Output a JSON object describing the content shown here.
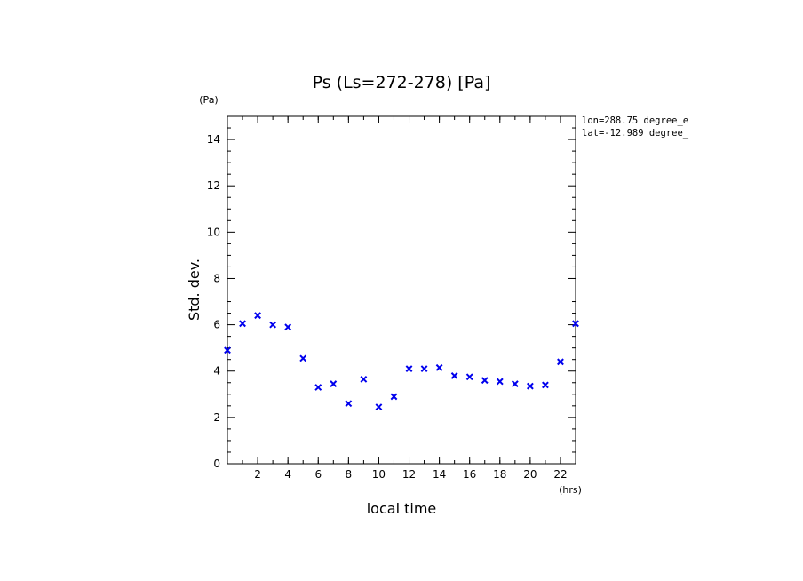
{
  "chart_data": {
    "type": "scatter",
    "title": "Ps (Ls=272-278) [Pa]",
    "xlabel": "local time",
    "ylabel": "Std. dev.",
    "x_unit": "(hrs)",
    "y_unit": "(Pa)",
    "xlim": [
      0,
      23
    ],
    "ylim": [
      0,
      15
    ],
    "x_ticks": [
      2,
      4,
      6,
      8,
      10,
      12,
      14,
      16,
      18,
      20,
      22
    ],
    "y_ticks": [
      0,
      2,
      4,
      6,
      8,
      10,
      12,
      14
    ],
    "grid": false,
    "marker": "x",
    "marker_color": "#0000ee",
    "annotations": [
      "lon=288.75 degree_e",
      "lat=-12.989 degree_"
    ],
    "series": [
      {
        "x": [
          0,
          1,
          2,
          3,
          4,
          5,
          6,
          7,
          8,
          9,
          10,
          11,
          12,
          13,
          14,
          15,
          16,
          17,
          18,
          19,
          20,
          21,
          22,
          23
        ],
        "y": [
          4.9,
          6.05,
          6.4,
          6.0,
          5.9,
          4.55,
          3.3,
          3.45,
          2.6,
          3.65,
          2.45,
          2.9,
          4.1,
          4.1,
          4.15,
          3.8,
          3.75,
          3.6,
          3.55,
          3.45,
          3.35,
          3.4,
          4.4,
          6.05
        ]
      }
    ]
  }
}
